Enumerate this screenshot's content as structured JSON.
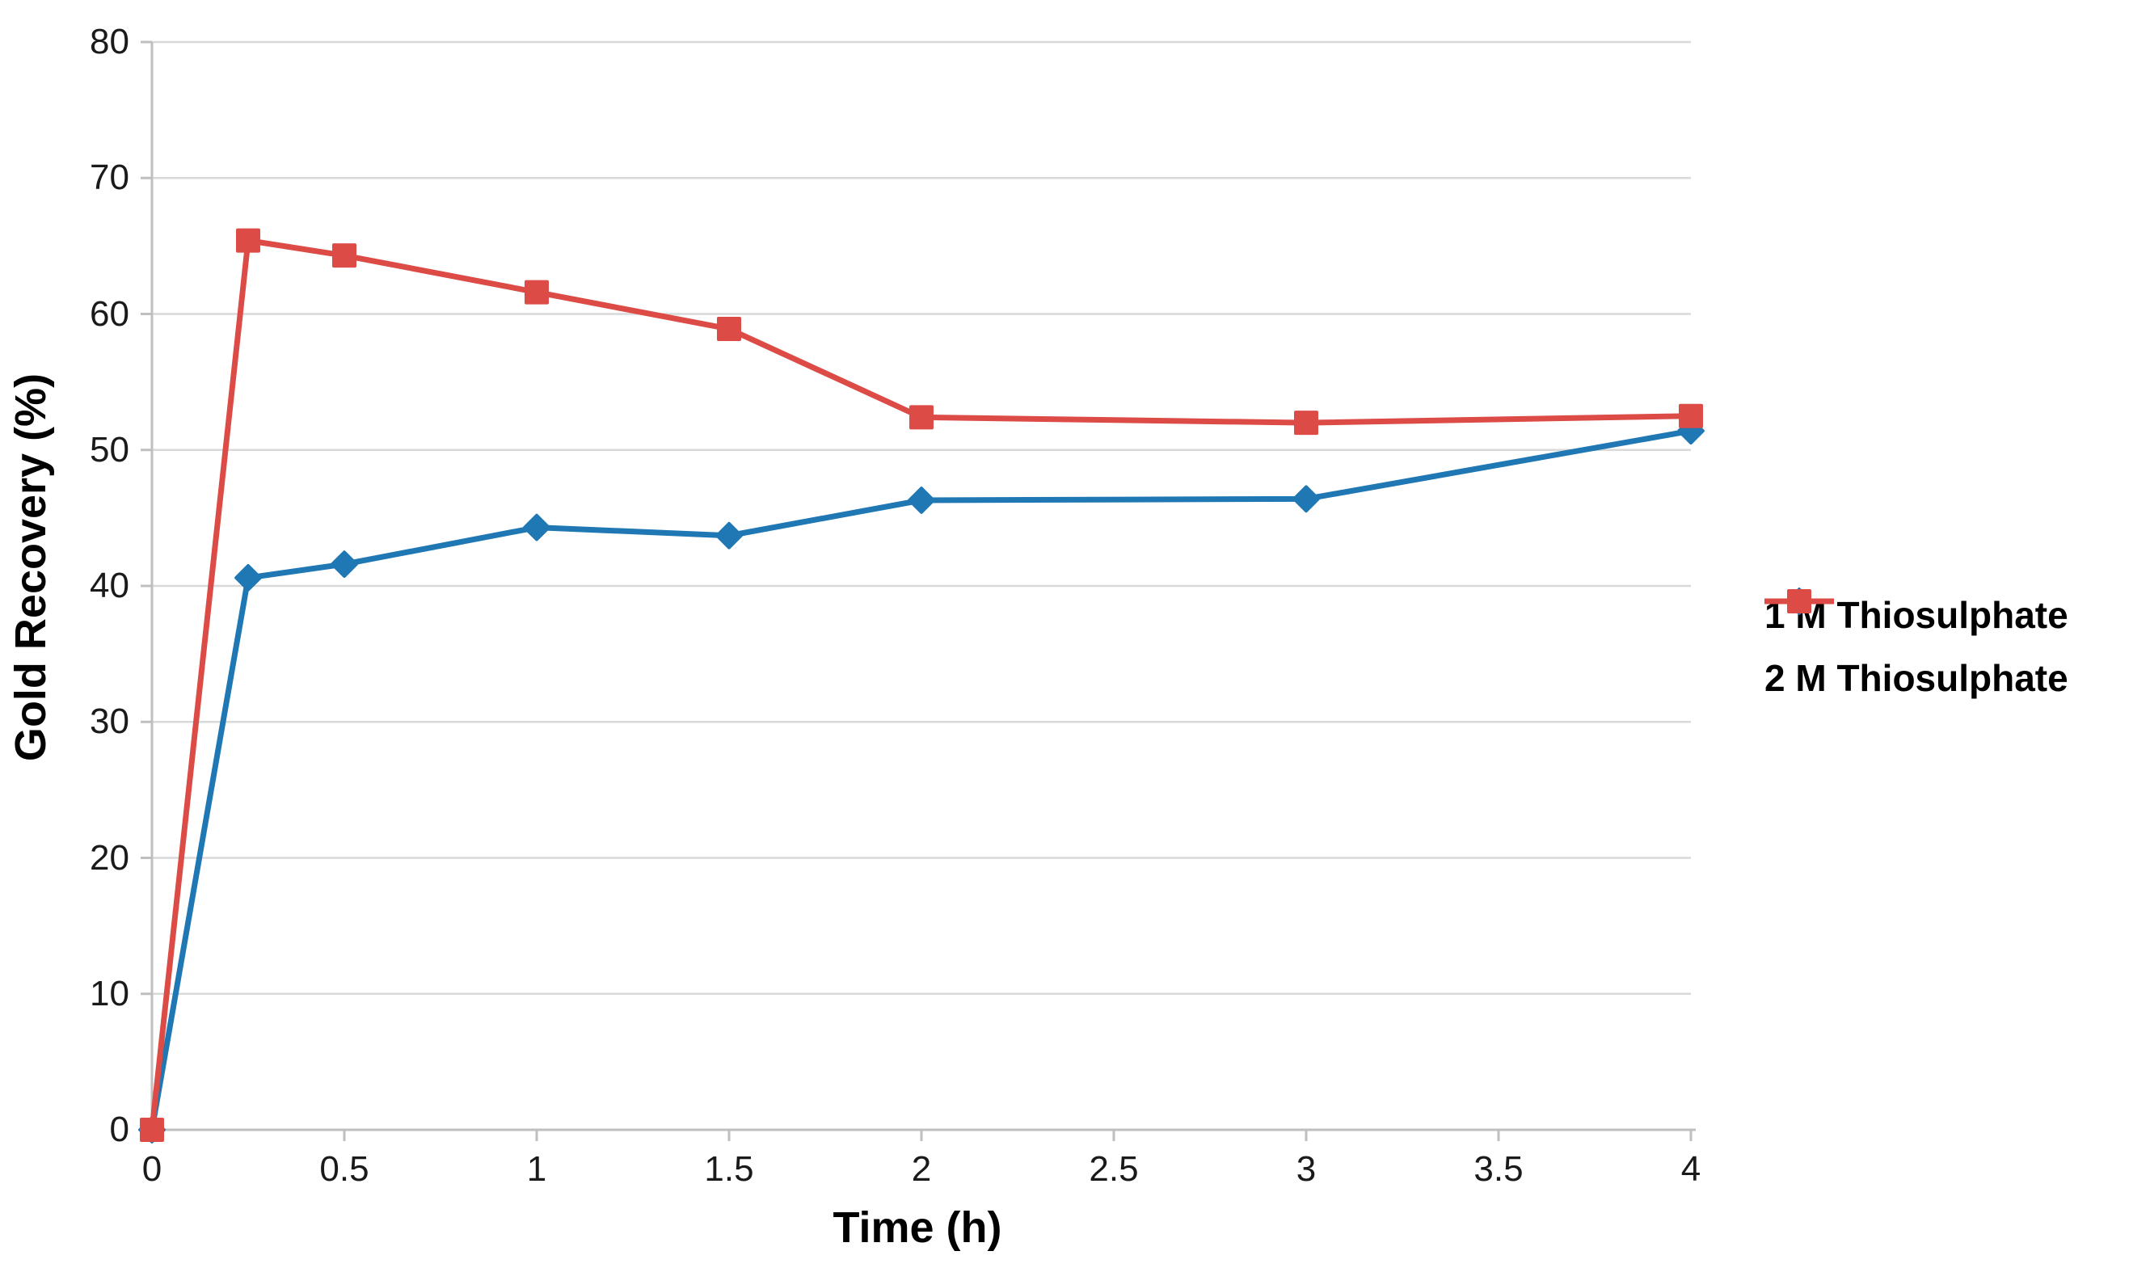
{
  "chart_data": {
    "type": "line",
    "title": "",
    "xlabel": "Time (h)",
    "ylabel": "Gold Recovery (%)",
    "x": [
      0,
      0.25,
      0.5,
      1,
      1.5,
      2,
      3,
      4
    ],
    "series": [
      {
        "name": "1 M Thiosulphate",
        "color": "#1F77B4",
        "marker": "diamond",
        "values": [
          0,
          40.6,
          41.6,
          44.3,
          43.7,
          46.3,
          46.4,
          51.4
        ]
      },
      {
        "name": "2 M Thiosulphate",
        "color": "#DC4B45",
        "marker": "square",
        "values": [
          0,
          65.4,
          64.3,
          61.6,
          58.9,
          52.4,
          52.0,
          52.5
        ]
      }
    ],
    "xlim": [
      0,
      4
    ],
    "ylim": [
      0,
      80
    ],
    "xticks": [
      "0",
      "0.5",
      "1",
      "1.5",
      "2",
      "2.5",
      "3",
      "3.5",
      "4"
    ],
    "yticks": [
      "0",
      "10",
      "20",
      "30",
      "40",
      "50",
      "60",
      "70",
      "80"
    ],
    "grid": "horizontal",
    "legend_position": "right",
    "style": {
      "gridline_color": "#D9D9D9",
      "axis_color": "#BFBFBF",
      "tick_label_color": "#1a1a1a",
      "background": "#FFFFFF"
    }
  }
}
